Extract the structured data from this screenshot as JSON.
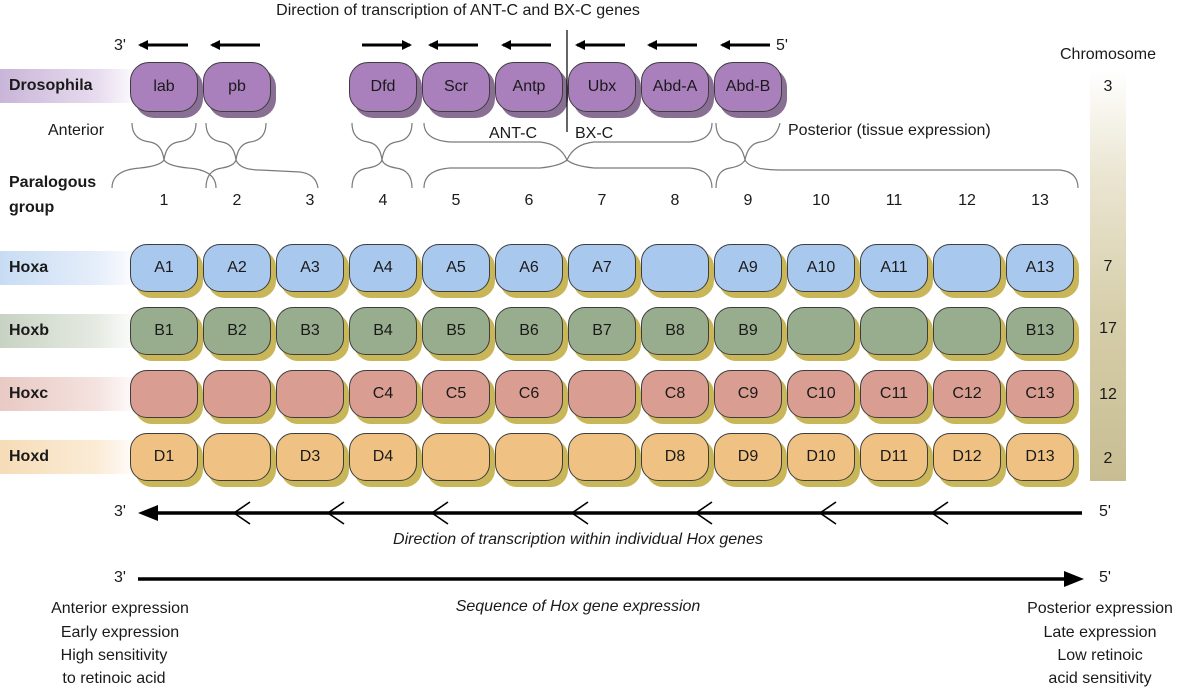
{
  "title": "Direction of transcription of ANT-C and BX-C genes",
  "top_end_3": "3'",
  "top_end_5": "5'",
  "chromosome_header": "Chromosome",
  "drosophila": {
    "label": "Drosophila",
    "chromosome": "3",
    "genes": [
      "lab",
      "pb",
      "Dfd",
      "Scr",
      "Antp",
      "Ubx",
      "Abd-A",
      "Abd-B"
    ]
  },
  "anterior_label": "Anterior",
  "antc_label": "ANT-C",
  "bxc_label": "BX-C",
  "posterior_label": "Posterior (tissue expression)",
  "paralogous_label_1": "Paralogous",
  "paralogous_label_2": "group",
  "paralogous_groups": [
    "1",
    "2",
    "3",
    "4",
    "5",
    "6",
    "7",
    "8",
    "9",
    "10",
    "11",
    "12",
    "13"
  ],
  "clusters": [
    {
      "label": "Hoxa",
      "chromosome": "7",
      "genes": [
        "A1",
        "A2",
        "A3",
        "A4",
        "A5",
        "A6",
        "A7",
        "",
        "A9",
        "A10",
        "A11",
        "",
        "A13"
      ]
    },
    {
      "label": "Hoxb",
      "chromosome": "17",
      "genes": [
        "B1",
        "B2",
        "B3",
        "B4",
        "B5",
        "B6",
        "B7",
        "B8",
        "B9",
        "",
        "",
        "",
        "B13"
      ]
    },
    {
      "label": "Hoxc",
      "chromosome": "12",
      "genes": [
        "",
        "",
        "",
        "C4",
        "C5",
        "C6",
        "",
        "C8",
        "C9",
        "C10",
        "C11",
        "C12",
        "C13"
      ]
    },
    {
      "label": "Hoxd",
      "chromosome": "2",
      "genes": [
        "D1",
        "",
        "D3",
        "D4",
        "",
        "",
        "",
        "D8",
        "D9",
        "D10",
        "D11",
        "D12",
        "D13"
      ]
    }
  ],
  "individual_3": "3'",
  "individual_5": "5'",
  "individual_caption": "Direction of transcription within individual Hox genes",
  "sequence_3": "3'",
  "sequence_5": "5'",
  "sequence_caption": "Sequence of Hox gene expression",
  "left_notes": [
    "Anterior expression",
    "Early expression",
    "High sensitivity",
    "to retinoic acid"
  ],
  "right_notes": [
    "Posterior expression",
    "Late expression",
    "Low retinoic",
    "acid sensitivity"
  ],
  "colors": {
    "drosophila": "#a97fbc",
    "hoxa": "#a9c8ee",
    "hoxb": "#98ad8e",
    "hoxc": "#d99d92",
    "hoxd": "#efc283"
  }
}
